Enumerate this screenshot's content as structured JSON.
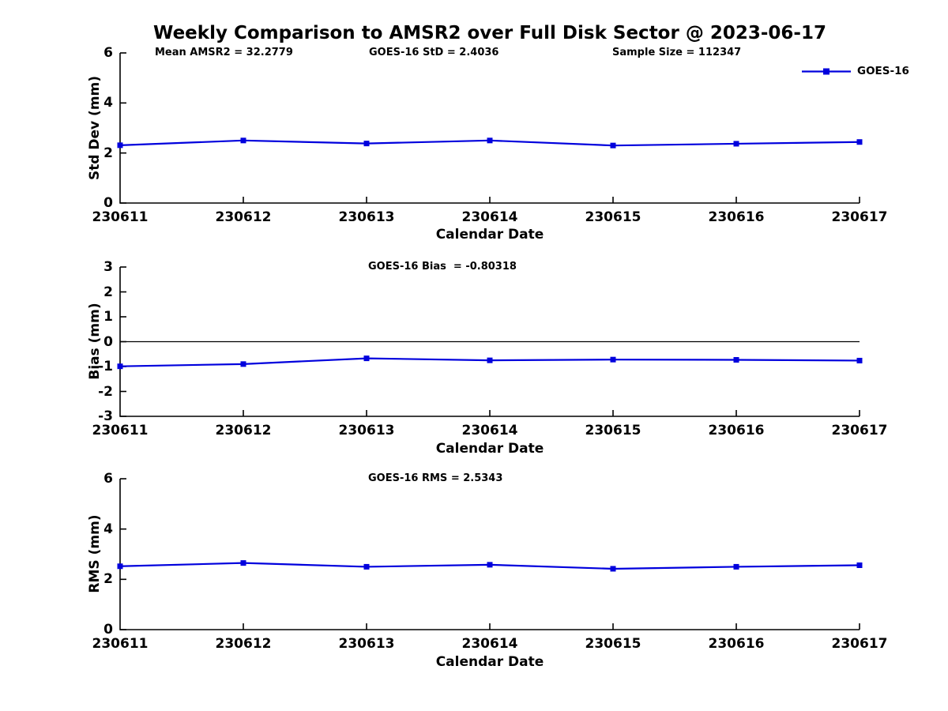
{
  "title": "Weekly Comparison to AMSR2 over Full Disk Sector @ 2023-06-17",
  "legend": {
    "label": "GOES-16",
    "position": "top-right",
    "series_color": "#0000dd"
  },
  "colors": {
    "line": "#0000dd",
    "axis": "#000000",
    "text": "#000000",
    "background": "#ffffff"
  },
  "chart_data": [
    {
      "type": "line",
      "ylabel": "Std Dev (mm)",
      "xlabel": "Calendar Date",
      "ylim": [
        0,
        6
      ],
      "yticks": [
        0,
        2,
        4,
        6
      ],
      "grid": false,
      "zero_line": false,
      "categories": [
        "230611",
        "230612",
        "230613",
        "230614",
        "230615",
        "230616",
        "230617"
      ],
      "series": [
        {
          "name": "GOES-16",
          "color": "#0000dd",
          "marker": "square",
          "values": [
            2.31,
            2.5,
            2.38,
            2.5,
            2.3,
            2.37,
            2.44
          ]
        }
      ],
      "annotations": {
        "left": "Mean AMSR2 = 32.2779",
        "center": "GOES-16 StD = 2.4036",
        "right": "Sample Size = 112347"
      }
    },
    {
      "type": "line",
      "ylabel": "Bias (mm)",
      "xlabel": "Calendar Date",
      "ylim": [
        -3,
        3
      ],
      "yticks": [
        -3,
        -2,
        -1,
        0,
        1,
        2,
        3
      ],
      "grid": false,
      "zero_line": true,
      "categories": [
        "230611",
        "230612",
        "230613",
        "230614",
        "230615",
        "230616",
        "230617"
      ],
      "series": [
        {
          "name": "GOES-16",
          "color": "#0000dd",
          "marker": "square",
          "values": [
            -0.99,
            -0.9,
            -0.67,
            -0.75,
            -0.72,
            -0.73,
            -0.76
          ]
        }
      ],
      "annotations": {
        "center": "GOES-16 Bias  = -0.80318"
      }
    },
    {
      "type": "line",
      "ylabel": "RMS (mm)",
      "xlabel": "Calendar Date",
      "ylim": [
        0,
        6
      ],
      "yticks": [
        0,
        2,
        4,
        6
      ],
      "grid": false,
      "zero_line": false,
      "categories": [
        "230611",
        "230612",
        "230613",
        "230614",
        "230615",
        "230616",
        "230617"
      ],
      "series": [
        {
          "name": "GOES-16",
          "color": "#0000dd",
          "marker": "square",
          "values": [
            2.52,
            2.65,
            2.5,
            2.58,
            2.42,
            2.5,
            2.56
          ]
        }
      ],
      "annotations": {
        "center": "GOES-16 RMS = 2.5343"
      }
    }
  ]
}
